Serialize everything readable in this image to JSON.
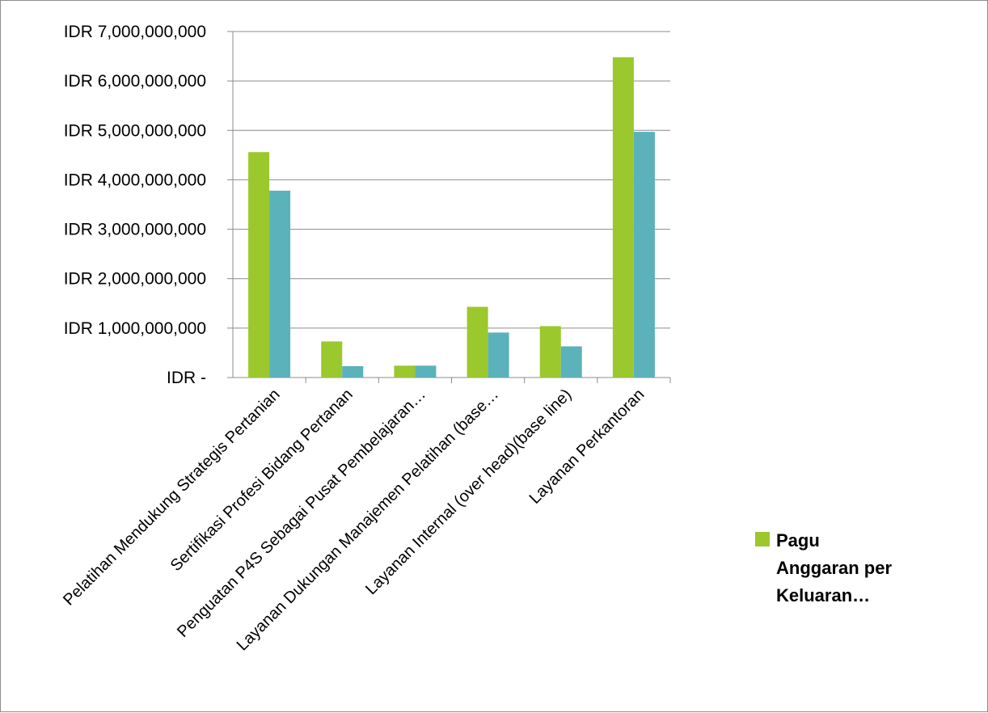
{
  "chart_data": {
    "type": "bar",
    "categories": [
      "Pelatihan Mendukung Strategis Pertanian",
      "Sertifikasi Profesi Bidang Pertanan",
      "Penguatan P4S Sebagai Pusat Pembelajaran…",
      "Layanan Dukungan Manajemen Pelatihan (base…",
      "Layanan Internal (over head)(base line)",
      "Layanan Perkantoran"
    ],
    "series": [
      {
        "name": "Pagu Anggaran per Keluaran…",
        "color": "#9bc82d",
        "values": [
          4560000000,
          730000000,
          240000000,
          1430000000,
          1040000000,
          6480000000
        ]
      },
      {
        "name": "",
        "color": "#5bb2bb",
        "values": [
          3780000000,
          230000000,
          240000000,
          910000000,
          630000000,
          4970000000
        ]
      }
    ],
    "ylim": [
      0,
      7000000000
    ],
    "y_ticks": [
      0,
      1000000000,
      2000000000,
      3000000000,
      4000000000,
      5000000000,
      6000000000,
      7000000000
    ],
    "y_tick_labels": [
      "IDR -",
      "IDR 1,000,000,000",
      "IDR 2,000,000,000",
      "IDR 3,000,000,000",
      "IDR 4,000,000,000",
      "IDR 5,000,000,000",
      "IDR 6,000,000,000",
      "IDR 7,000,000,000"
    ],
    "grid": true,
    "legend": {
      "placement": "right",
      "lines": [
        "Pagu",
        "Anggaran per",
        "Keluaran…"
      ]
    },
    "title": "",
    "xlabel": "",
    "ylabel": ""
  }
}
